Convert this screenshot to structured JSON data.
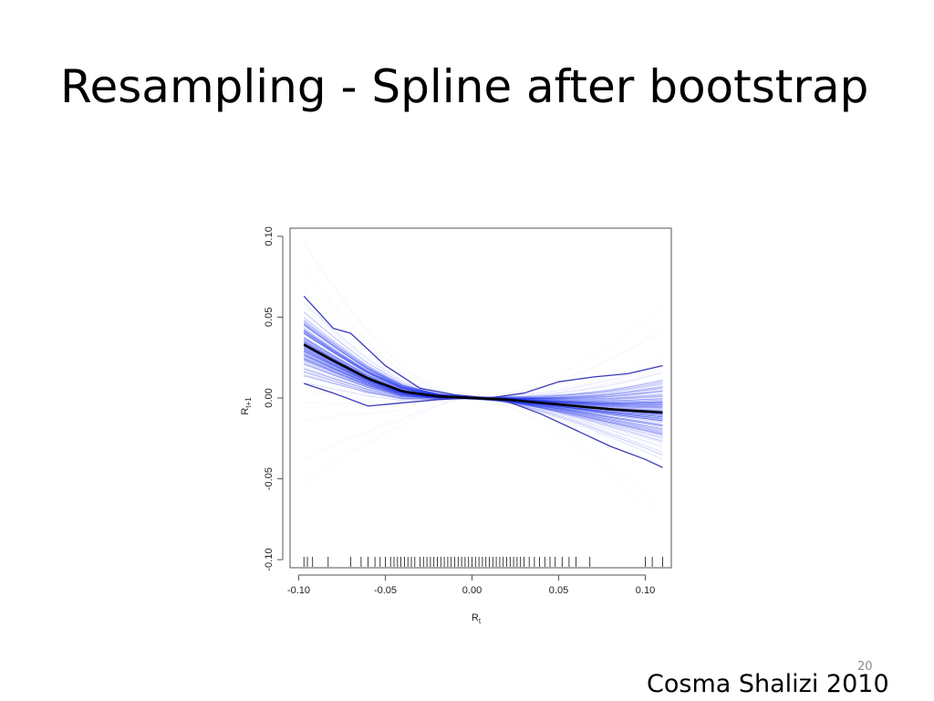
{
  "slide": {
    "title": "Resampling - Spline after bootstrap",
    "number": "20",
    "credit": "Cosma Shalizi 2010"
  },
  "colors": {
    "spline": "#000000",
    "bootstrap": "#2233ee",
    "band": "#3b3bb8"
  },
  "chart_data": {
    "type": "line",
    "title": "",
    "xlabel": "R_t",
    "ylabel": "R_t+1",
    "xlabel_main": "R",
    "xlabel_sub": "t",
    "ylabel_main": "R",
    "ylabel_sub": "t+1",
    "xlim": [
      -0.105,
      0.115
    ],
    "ylim": [
      -0.105,
      0.105
    ],
    "x_ticks": [
      -0.1,
      -0.05,
      0.0,
      0.05,
      0.1
    ],
    "x_tick_labels": [
      "-0.10",
      "-0.05",
      "0.00",
      "0.05",
      "0.10"
    ],
    "y_ticks": [
      -0.1,
      -0.05,
      0.0,
      0.05,
      0.1
    ],
    "y_tick_labels": [
      "-0.10",
      "-0.05",
      "0.00",
      "0.05",
      "0.10"
    ],
    "grid": false,
    "series": [
      {
        "name": "",
        "role": "spline-fit",
        "x": [
          -0.097,
          -0.08,
          -0.06,
          -0.04,
          -0.02,
          0.0,
          0.02,
          0.04,
          0.06,
          0.08,
          0.11
        ],
        "y": [
          0.033,
          0.023,
          0.012,
          0.004,
          0.001,
          0.0,
          -0.001,
          -0.003,
          -0.005,
          -0.007,
          -0.009
        ]
      },
      {
        "name": "",
        "role": "upper-band",
        "x": [
          -0.097,
          -0.08,
          -0.07,
          -0.05,
          -0.03,
          -0.01,
          0.01,
          0.03,
          0.05,
          0.07,
          0.09,
          0.11
        ],
        "y": [
          0.063,
          0.043,
          0.04,
          0.02,
          0.006,
          0.002,
          0.0,
          0.003,
          0.01,
          0.013,
          0.015,
          0.02
        ]
      },
      {
        "name": "",
        "role": "lower-band",
        "x": [
          -0.097,
          -0.08,
          -0.06,
          -0.04,
          -0.02,
          0.0,
          0.02,
          0.04,
          0.06,
          0.08,
          0.1,
          0.11
        ],
        "y": [
          0.009,
          0.003,
          -0.005,
          -0.003,
          -0.001,
          0.0,
          -0.002,
          -0.01,
          -0.02,
          -0.03,
          -0.038,
          -0.043
        ]
      }
    ],
    "bootstrap_curves_count": 200,
    "rug_x": [
      -0.097,
      -0.095,
      -0.092,
      -0.083,
      -0.07,
      -0.064,
      -0.06,
      -0.056,
      -0.053,
      -0.05,
      -0.047,
      -0.045,
      -0.043,
      -0.041,
      -0.039,
      -0.037,
      -0.035,
      -0.033,
      -0.03,
      -0.028,
      -0.026,
      -0.024,
      -0.022,
      -0.02,
      -0.018,
      -0.016,
      -0.014,
      -0.012,
      -0.01,
      -0.008,
      -0.006,
      -0.004,
      -0.002,
      0.0,
      0.002,
      0.004,
      0.006,
      0.008,
      0.01,
      0.012,
      0.014,
      0.016,
      0.018,
      0.02,
      0.022,
      0.024,
      0.026,
      0.028,
      0.03,
      0.033,
      0.036,
      0.039,
      0.042,
      0.045,
      0.048,
      0.052,
      0.056,
      0.06,
      0.068,
      0.1,
      0.104,
      0.11
    ]
  }
}
